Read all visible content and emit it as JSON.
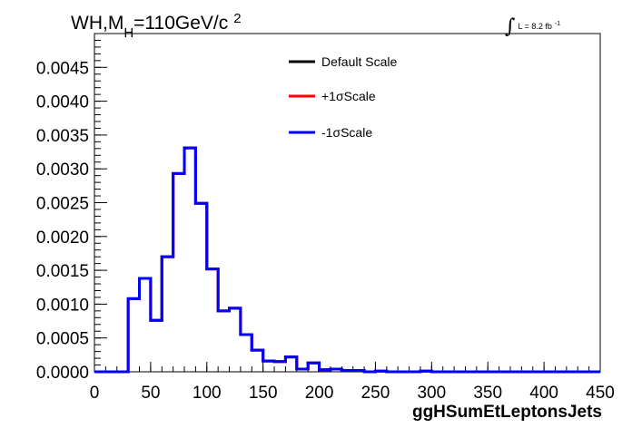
{
  "chart_data": {
    "type": "line",
    "title_parts": {
      "prefix": "WH,M",
      "sub": "H",
      "middle": "=110GeV/c",
      "sup": "2"
    },
    "lumi_parts": {
      "integral": "∫",
      "text": "L = 8.2 fb",
      "sup": "-1"
    },
    "xlabel": "ggHSumEtLeptonsJets",
    "ylabel": "",
    "xlim": [
      0,
      450
    ],
    "ylim": [
      0,
      0.005
    ],
    "x_ticks": [
      "0",
      "50",
      "100",
      "150",
      "200",
      "250",
      "300",
      "350",
      "400",
      "450"
    ],
    "y_ticks": [
      "0.0000",
      "0.0005",
      "0.0010",
      "0.0015",
      "0.0020",
      "0.0025",
      "0.0030",
      "0.0035",
      "0.0040",
      "0.0045"
    ],
    "grid": false,
    "legend_position": "top-center",
    "bin_edges": [
      0,
      10,
      20,
      30,
      40,
      50,
      60,
      70,
      80,
      90,
      100,
      110,
      120,
      130,
      140,
      150,
      160,
      170,
      180,
      190,
      200,
      210,
      220,
      230,
      240,
      250,
      260,
      270,
      280,
      290,
      300,
      310,
      320,
      330,
      340,
      350,
      360,
      370,
      380,
      390,
      400,
      410,
      420,
      430,
      440,
      450
    ],
    "series": [
      {
        "name": "Default Scale",
        "color": "#000000",
        "values": [
          0,
          0,
          0,
          0.00108,
          0.00138,
          0.00076,
          0.0017,
          0.00293,
          0.00331,
          0.00249,
          0.00152,
          0.0009,
          0.00094,
          0.00055,
          0.00032,
          0.00016,
          0.00015,
          0.00022,
          4e-05,
          0.00013,
          3e-05,
          4e-05,
          2e-05,
          2e-05,
          0,
          1e-05,
          0,
          0,
          0,
          1e-05,
          0,
          0,
          0,
          0,
          0,
          0,
          0,
          0,
          0,
          0,
          0,
          0,
          0,
          0,
          0
        ]
      },
      {
        "name": "+1σScale",
        "color": "#ff0000",
        "values": [
          0,
          0,
          0,
          0.00108,
          0.00138,
          0.00076,
          0.0017,
          0.00293,
          0.00331,
          0.00249,
          0.00152,
          0.0009,
          0.00094,
          0.00055,
          0.00032,
          0.00016,
          0.00015,
          0.00022,
          4e-05,
          0.00013,
          3e-05,
          4e-05,
          2e-05,
          2e-05,
          0,
          1e-05,
          0,
          0,
          0,
          1e-05,
          0,
          0,
          0,
          0,
          0,
          0,
          0,
          0,
          0,
          0,
          0,
          0,
          0,
          0,
          0
        ]
      },
      {
        "name": "-1σScale",
        "color": "#0000ff",
        "values": [
          0,
          0,
          0,
          0.00108,
          0.00138,
          0.00076,
          0.0017,
          0.00293,
          0.00331,
          0.00249,
          0.00152,
          0.0009,
          0.00094,
          0.00055,
          0.00032,
          0.00016,
          0.00015,
          0.00022,
          4e-05,
          0.00013,
          3e-05,
          4e-05,
          2e-05,
          2e-05,
          0,
          1e-05,
          0,
          0,
          0,
          1e-05,
          0,
          0,
          0,
          0,
          0,
          0,
          0,
          0,
          0,
          0,
          0,
          0,
          0,
          0,
          0
        ]
      }
    ]
  }
}
